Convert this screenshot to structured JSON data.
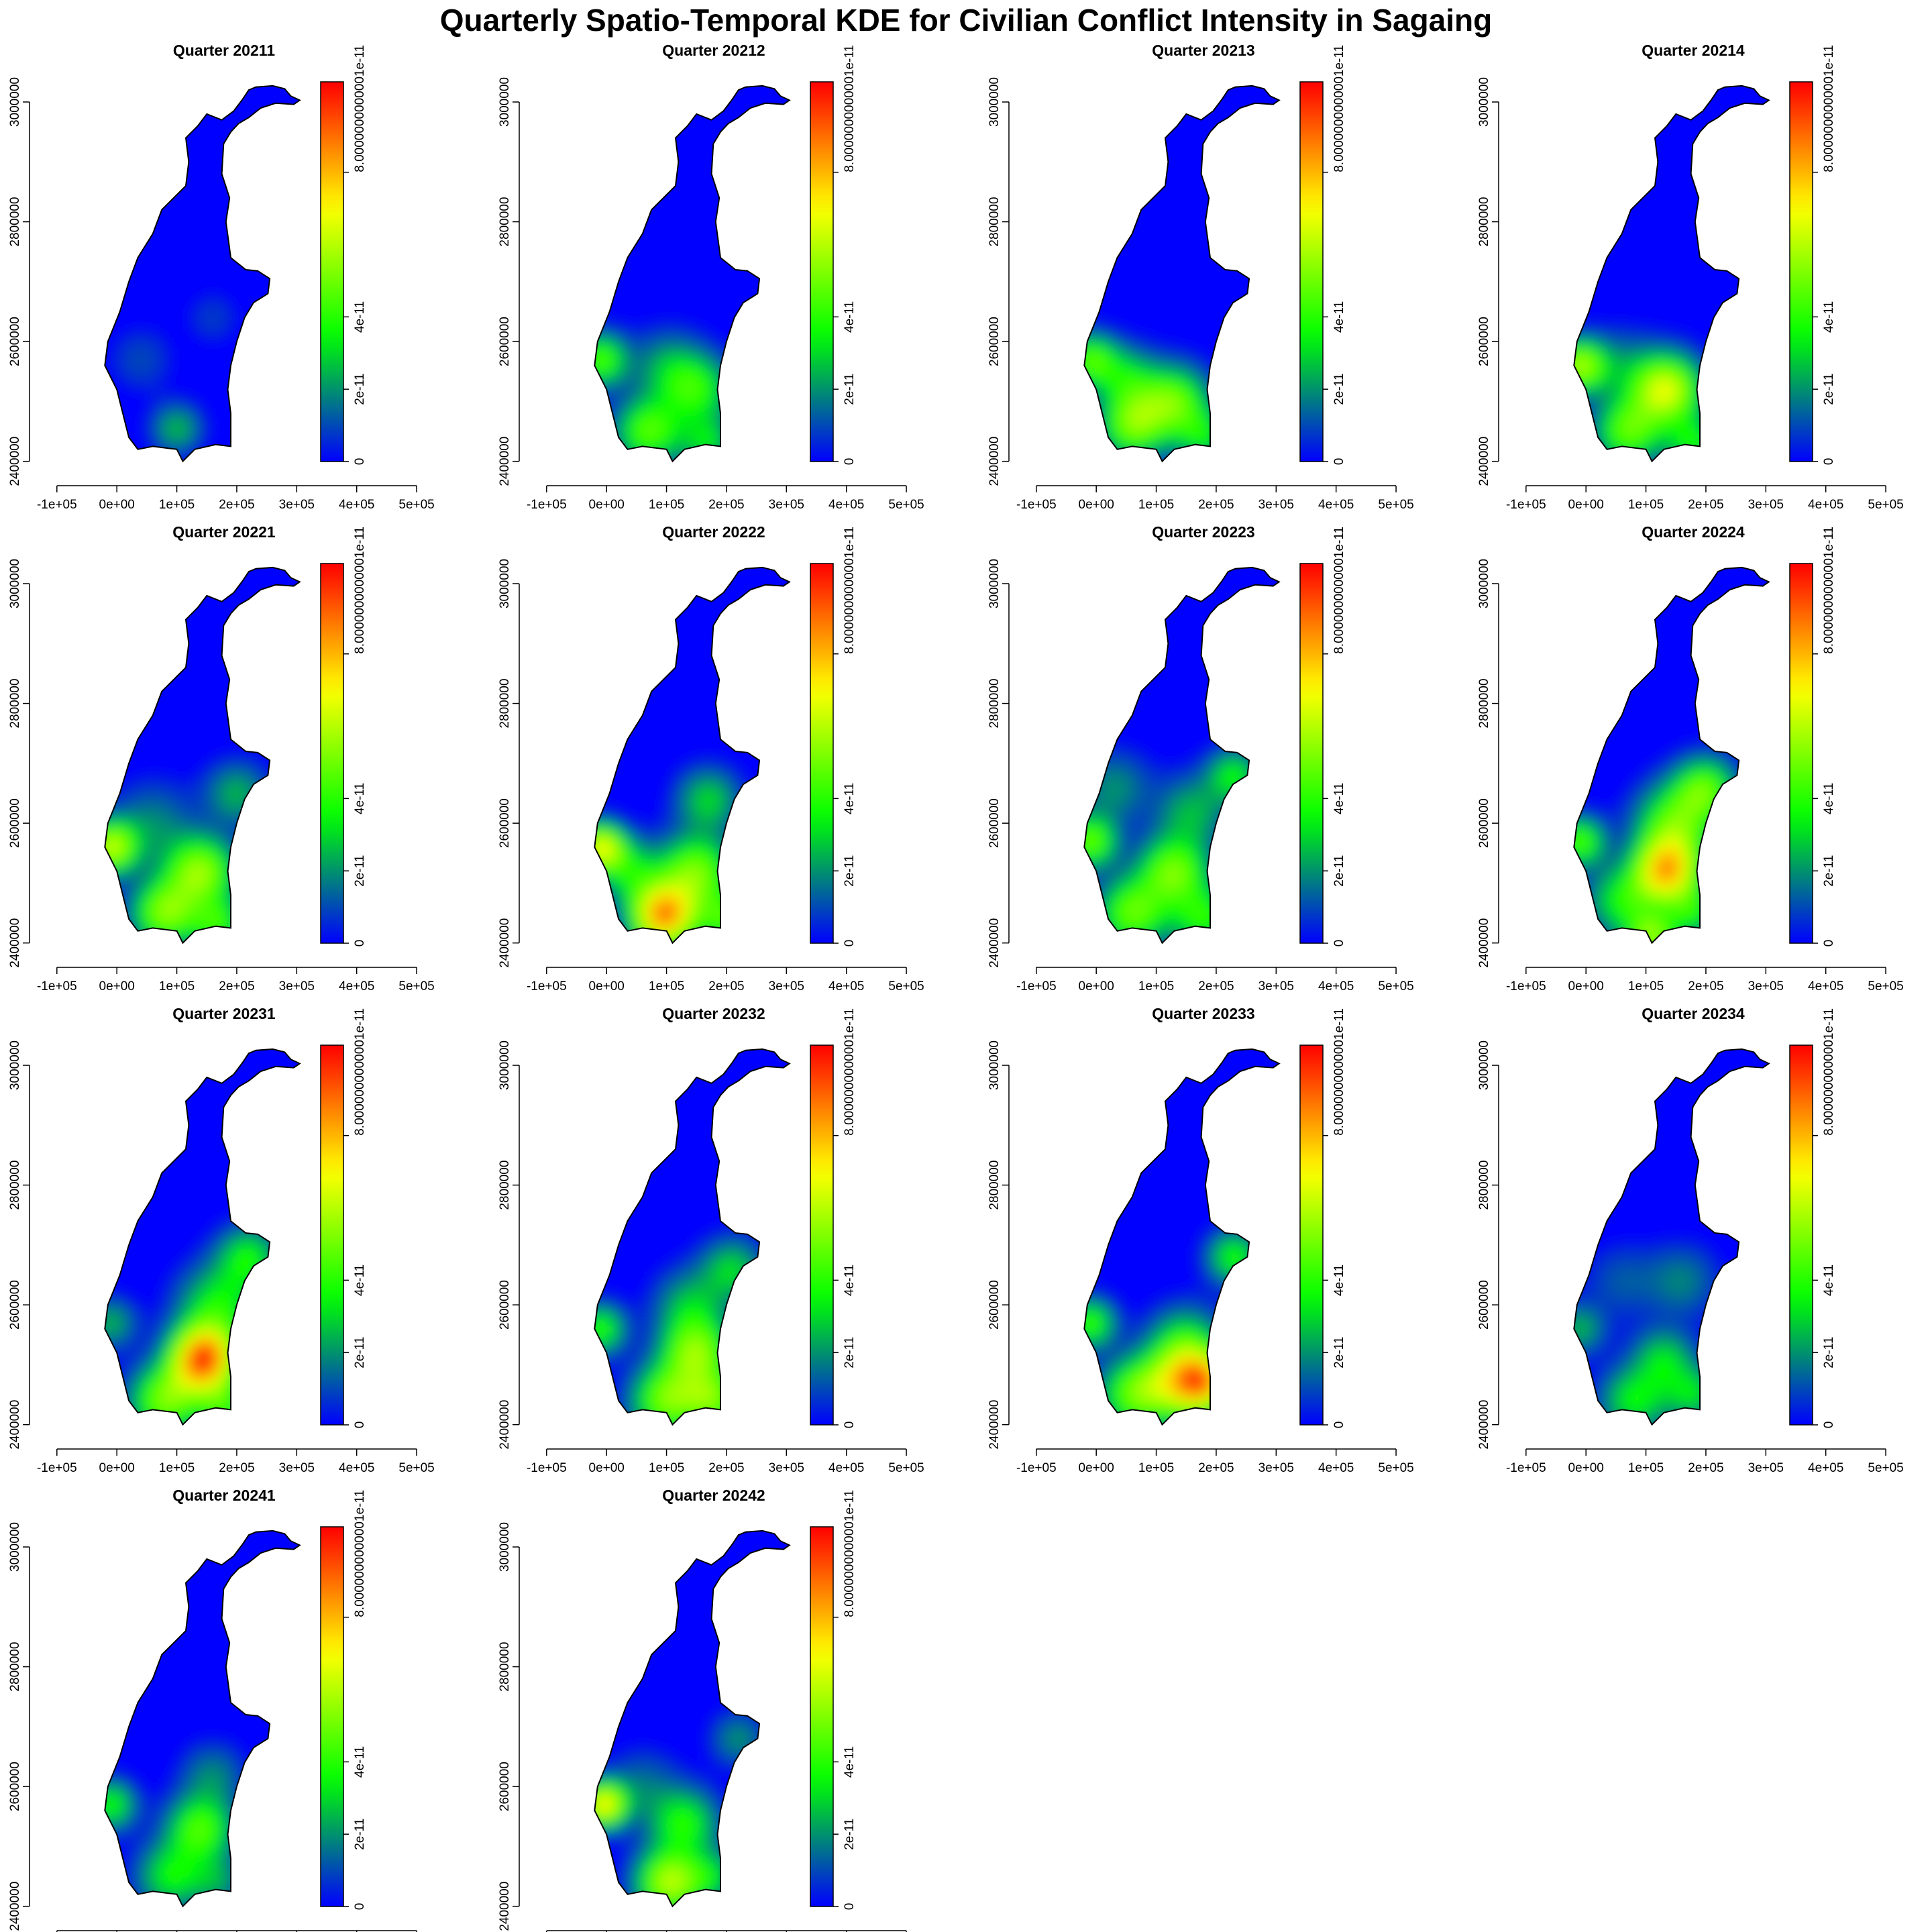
{
  "title": "Quarterly Spatio-Temporal KDE for Civilian Conflict Intensity in Sagaing",
  "colors": {
    "ramp": [
      "#0000ff",
      "#00ff00",
      "#ffff00",
      "#ff0000"
    ],
    "background": "#ffffff",
    "outline": "#000000"
  },
  "chart_data": {
    "type": "heatmap",
    "layout": {
      "rows": 4,
      "cols": 4
    },
    "x_ticks": [
      "-1e+05",
      "0e+00",
      "1e+05",
      "2e+05",
      "3e+05",
      "4e+05",
      "5e+05"
    ],
    "x_tick_values": [
      -100000,
      0,
      100000,
      200000,
      300000,
      400000,
      500000
    ],
    "y_ticks": [
      "2400000",
      "2600000",
      "2800000",
      "3000000"
    ],
    "y_tick_values": [
      2400000,
      2600000,
      2800000,
      3000000
    ],
    "xlim": [
      -130000,
      510000
    ],
    "ylim": [
      2375000,
      3065000
    ],
    "colorbar": {
      "labels": [
        "0",
        "2e-11",
        "4e-11",
        "8.0000000000001e-11"
      ],
      "values": [
        0,
        2e-11,
        4e-11,
        8e-11
      ],
      "range": [
        0,
        1.05e-10
      ]
    },
    "boundary": [
      [
        232000,
        3025000
      ],
      [
        260000,
        3027000
      ],
      [
        280000,
        3022000
      ],
      [
        290000,
        3010000
      ],
      [
        305000,
        3003000
      ],
      [
        295000,
        2996000
      ],
      [
        265000,
        2998000
      ],
      [
        240000,
        2990000
      ],
      [
        220000,
        2974000
      ],
      [
        203000,
        2964000
      ],
      [
        190000,
        2950000
      ],
      [
        178000,
        2930000
      ],
      [
        175000,
        2880000
      ],
      [
        188000,
        2840000
      ],
      [
        182000,
        2800000
      ],
      [
        190000,
        2740000
      ],
      [
        215000,
        2720000
      ],
      [
        235000,
        2718000
      ],
      [
        255000,
        2705000
      ],
      [
        252000,
        2680000
      ],
      [
        228000,
        2665000
      ],
      [
        213000,
        2640000
      ],
      [
        200000,
        2600000
      ],
      [
        190000,
        2560000
      ],
      [
        185000,
        2520000
      ],
      [
        190000,
        2480000
      ],
      [
        190000,
        2425000
      ],
      [
        165000,
        2428000
      ],
      [
        130000,
        2420000
      ],
      [
        110000,
        2400000
      ],
      [
        100000,
        2420000
      ],
      [
        60000,
        2425000
      ],
      [
        35000,
        2420000
      ],
      [
        20000,
        2440000
      ],
      [
        10000,
        2480000
      ],
      [
        0,
        2520000
      ],
      [
        -20000,
        2560000
      ],
      [
        -15000,
        2600000
      ],
      [
        5000,
        2650000
      ],
      [
        20000,
        2700000
      ],
      [
        35000,
        2740000
      ],
      [
        60000,
        2780000
      ],
      [
        75000,
        2820000
      ],
      [
        115000,
        2860000
      ],
      [
        120000,
        2900000
      ],
      [
        115000,
        2940000
      ],
      [
        135000,
        2960000
      ],
      [
        150000,
        2980000
      ],
      [
        175000,
        2970000
      ],
      [
        195000,
        2985000
      ],
      [
        210000,
        3005000
      ],
      [
        220000,
        3020000
      ]
    ],
    "panels": [
      {
        "title": "Quarter 20211",
        "hotspots": [
          {
            "x": 100000,
            "y": 2455000,
            "intensity": 2.6e-11,
            "spread": 28000
          },
          {
            "x": 40000,
            "y": 2570000,
            "intensity": 1e-11,
            "spread": 35000
          },
          {
            "x": 160000,
            "y": 2640000,
            "intensity": 8e-12,
            "spread": 30000
          }
        ]
      },
      {
        "title": "Quarter 20212",
        "hotspots": [
          {
            "x": -10000,
            "y": 2570000,
            "intensity": 4.5e-11,
            "spread": 30000
          },
          {
            "x": 70000,
            "y": 2450000,
            "intensity": 4.6e-11,
            "spread": 38000
          },
          {
            "x": 150000,
            "y": 2520000,
            "intensity": 3.8e-11,
            "spread": 40000
          },
          {
            "x": 170000,
            "y": 2430000,
            "intensity": 3e-11,
            "spread": 30000
          },
          {
            "x": 100000,
            "y": 2560000,
            "intensity": 2e-11,
            "spread": 40000
          }
        ]
      },
      {
        "title": "Quarter 20213",
        "hotspots": [
          {
            "x": -10000,
            "y": 2570000,
            "intensity": 4.3e-11,
            "spread": 30000
          },
          {
            "x": 60000,
            "y": 2460000,
            "intensity": 4.8e-11,
            "spread": 38000
          },
          {
            "x": 130000,
            "y": 2500000,
            "intensity": 4.8e-11,
            "spread": 40000
          },
          {
            "x": 50000,
            "y": 2540000,
            "intensity": 2.8e-11,
            "spread": 35000
          },
          {
            "x": 180000,
            "y": 2440000,
            "intensity": 3e-11,
            "spread": 30000
          }
        ]
      },
      {
        "title": "Quarter 20214",
        "hotspots": [
          {
            "x": -10000,
            "y": 2560000,
            "intensity": 5.6e-11,
            "spread": 30000
          },
          {
            "x": 135000,
            "y": 2520000,
            "intensity": 6.5e-11,
            "spread": 40000
          },
          {
            "x": 70000,
            "y": 2450000,
            "intensity": 4.6e-11,
            "spread": 38000
          },
          {
            "x": 180000,
            "y": 2430000,
            "intensity": 3.5e-11,
            "spread": 30000
          },
          {
            "x": 60000,
            "y": 2560000,
            "intensity": 1.5e-11,
            "spread": 40000
          }
        ]
      },
      {
        "title": "Quarter 20221",
        "hotspots": [
          {
            "x": -10000,
            "y": 2560000,
            "intensity": 6e-11,
            "spread": 30000
          },
          {
            "x": 140000,
            "y": 2520000,
            "intensity": 5.5e-11,
            "spread": 40000
          },
          {
            "x": 80000,
            "y": 2450000,
            "intensity": 5.2e-11,
            "spread": 38000
          },
          {
            "x": 170000,
            "y": 2430000,
            "intensity": 3.8e-11,
            "spread": 30000
          },
          {
            "x": 200000,
            "y": 2650000,
            "intensity": 2.5e-11,
            "spread": 35000
          },
          {
            "x": 60000,
            "y": 2600000,
            "intensity": 1.8e-11,
            "spread": 45000
          }
        ]
      },
      {
        "title": "Quarter 20222",
        "hotspots": [
          {
            "x": -10000,
            "y": 2560000,
            "intensity": 6.5e-11,
            "spread": 28000
          },
          {
            "x": 95000,
            "y": 2445000,
            "intensity": 8.5e-11,
            "spread": 38000
          },
          {
            "x": 150000,
            "y": 2520000,
            "intensity": 5e-11,
            "spread": 42000
          },
          {
            "x": 170000,
            "y": 2640000,
            "intensity": 3e-11,
            "spread": 35000
          },
          {
            "x": 200000,
            "y": 2440000,
            "intensity": 4e-11,
            "spread": 30000
          },
          {
            "x": 40000,
            "y": 2520000,
            "intensity": 3e-11,
            "spread": 35000
          }
        ]
      },
      {
        "title": "Quarter 20223",
        "hotspots": [
          {
            "x": -10000,
            "y": 2570000,
            "intensity": 4.8e-11,
            "spread": 30000
          },
          {
            "x": 130000,
            "y": 2520000,
            "intensity": 5e-11,
            "spread": 40000
          },
          {
            "x": 60000,
            "y": 2450000,
            "intensity": 4.8e-11,
            "spread": 40000
          },
          {
            "x": 180000,
            "y": 2440000,
            "intensity": 3.8e-11,
            "spread": 35000
          },
          {
            "x": 230000,
            "y": 2680000,
            "intensity": 3.5e-11,
            "spread": 30000
          },
          {
            "x": 160000,
            "y": 2620000,
            "intensity": 2.5e-11,
            "spread": 40000
          },
          {
            "x": 30000,
            "y": 2660000,
            "intensity": 2e-11,
            "spread": 40000
          }
        ]
      },
      {
        "title": "Quarter 20224",
        "hotspots": [
          {
            "x": 135000,
            "y": 2520000,
            "intensity": 7.5e-11,
            "spread": 38000
          },
          {
            "x": 150000,
            "y": 2600000,
            "intensity": 4.5e-11,
            "spread": 45000
          },
          {
            "x": 200000,
            "y": 2660000,
            "intensity": 4.2e-11,
            "spread": 35000
          },
          {
            "x": -10000,
            "y": 2570000,
            "intensity": 4.5e-11,
            "spread": 28000
          },
          {
            "x": 110000,
            "y": 2410000,
            "intensity": 5e-11,
            "spread": 28000
          },
          {
            "x": 60000,
            "y": 2470000,
            "intensity": 3.5e-11,
            "spread": 40000
          },
          {
            "x": 180000,
            "y": 2450000,
            "intensity": 3.2e-11,
            "spread": 30000
          }
        ]
      },
      {
        "title": "Quarter 20231",
        "hotspots": [
          {
            "x": 145000,
            "y": 2510000,
            "intensity": 9.5e-11,
            "spread": 38000
          },
          {
            "x": 80000,
            "y": 2440000,
            "intensity": 5e-11,
            "spread": 40000
          },
          {
            "x": 170000,
            "y": 2600000,
            "intensity": 3.5e-11,
            "spread": 45000
          },
          {
            "x": 220000,
            "y": 2680000,
            "intensity": 3.5e-11,
            "spread": 35000
          },
          {
            "x": -10000,
            "y": 2570000,
            "intensity": 2.5e-11,
            "spread": 28000
          },
          {
            "x": 180000,
            "y": 2430000,
            "intensity": 3.5e-11,
            "spread": 30000
          }
        ]
      },
      {
        "title": "Quarter 20232",
        "hotspots": [
          {
            "x": 150000,
            "y": 2520000,
            "intensity": 5.2e-11,
            "spread": 40000
          },
          {
            "x": 100000,
            "y": 2440000,
            "intensity": 5e-11,
            "spread": 40000
          },
          {
            "x": 180000,
            "y": 2440000,
            "intensity": 4.2e-11,
            "spread": 32000
          },
          {
            "x": -10000,
            "y": 2560000,
            "intensity": 4e-11,
            "spread": 28000
          },
          {
            "x": 210000,
            "y": 2660000,
            "intensity": 3e-11,
            "spread": 35000
          },
          {
            "x": 140000,
            "y": 2600000,
            "intensity": 2.5e-11,
            "spread": 40000
          }
        ]
      },
      {
        "title": "Quarter 20233",
        "hotspots": [
          {
            "x": 180000,
            "y": 2470000,
            "intensity": 6.5e-11,
            "spread": 35000
          },
          {
            "x": 130000,
            "y": 2470000,
            "intensity": 4.5e-11,
            "spread": 45000
          },
          {
            "x": 60000,
            "y": 2450000,
            "intensity": 4e-11,
            "spread": 40000
          },
          {
            "x": -10000,
            "y": 2570000,
            "intensity": 4.2e-11,
            "spread": 28000
          },
          {
            "x": 230000,
            "y": 2680000,
            "intensity": 3.8e-11,
            "spread": 30000
          },
          {
            "x": 150000,
            "y": 2540000,
            "intensity": 3e-11,
            "spread": 40000
          }
        ]
      },
      {
        "title": "Quarter 20234",
        "hotspots": [
          {
            "x": 80000,
            "y": 2440000,
            "intensity": 3.5e-11,
            "spread": 38000
          },
          {
            "x": 130000,
            "y": 2510000,
            "intensity": 3e-11,
            "spread": 35000
          },
          {
            "x": 180000,
            "y": 2450000,
            "intensity": 3e-11,
            "spread": 32000
          },
          {
            "x": -10000,
            "y": 2560000,
            "intensity": 2.5e-11,
            "spread": 28000
          },
          {
            "x": 160000,
            "y": 2640000,
            "intensity": 1.8e-11,
            "spread": 40000
          },
          {
            "x": 60000,
            "y": 2640000,
            "intensity": 1.2e-11,
            "spread": 40000
          }
        ]
      },
      {
        "title": "Quarter 20241",
        "hotspots": [
          {
            "x": 140000,
            "y": 2530000,
            "intensity": 4.5e-11,
            "spread": 38000
          },
          {
            "x": 90000,
            "y": 2450000,
            "intensity": 3.5e-11,
            "spread": 38000
          },
          {
            "x": -10000,
            "y": 2570000,
            "intensity": 3.8e-11,
            "spread": 28000
          },
          {
            "x": 160000,
            "y": 2620000,
            "intensity": 1.8e-11,
            "spread": 35000
          },
          {
            "x": 170000,
            "y": 2440000,
            "intensity": 2e-11,
            "spread": 30000
          }
        ]
      },
      {
        "title": "Quarter 20242",
        "hotspots": [
          {
            "x": -5000,
            "y": 2570000,
            "intensity": 7e-11,
            "spread": 26000
          },
          {
            "x": 105000,
            "y": 2440000,
            "intensity": 6e-11,
            "spread": 38000
          },
          {
            "x": 130000,
            "y": 2540000,
            "intensity": 3.8e-11,
            "spread": 38000
          },
          {
            "x": 180000,
            "y": 2450000,
            "intensity": 2.5e-11,
            "spread": 30000
          },
          {
            "x": 220000,
            "y": 2680000,
            "intensity": 2e-11,
            "spread": 30000
          },
          {
            "x": 60000,
            "y": 2600000,
            "intensity": 1.5e-11,
            "spread": 40000
          }
        ]
      }
    ]
  }
}
